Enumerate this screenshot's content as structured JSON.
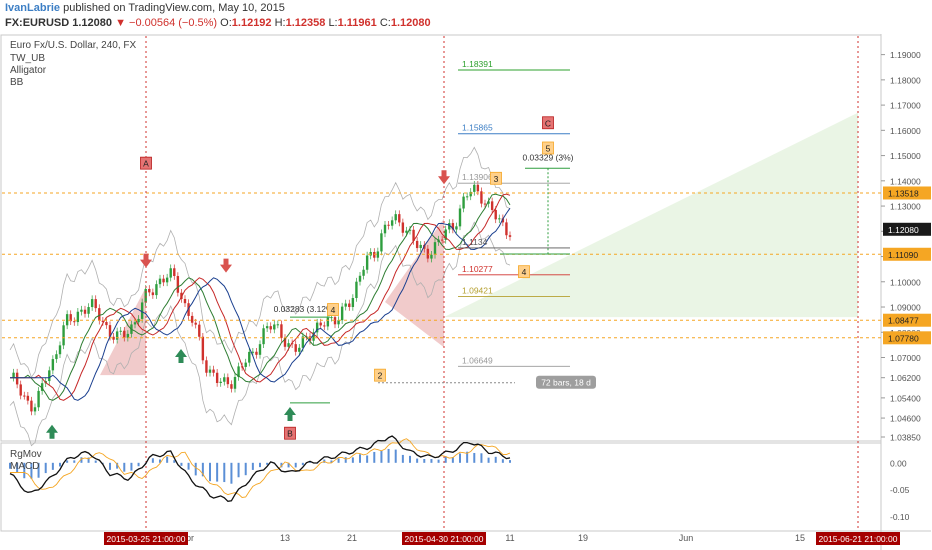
{
  "header": {
    "author": "IvanLabrie",
    "published": "published on TradingView.com, May 10, 2015",
    "symbol": "FX:EURUSD",
    "last": "1.12080",
    "change_arrow": "▼",
    "change": "−0.00564 (−0.5%)",
    "o_label": "O:",
    "o_value": "1.12192",
    "h_label": "H:",
    "h_value": "1.12358",
    "l_label": "L:",
    "l_value": "1.11961",
    "c_label": "C:",
    "c_value": "1.12080"
  },
  "main_pane": {
    "title": "Euro Fx/U.S. Dollar, 240, FX",
    "indicators": [
      "TW_UB",
      "Alligator",
      "BB"
    ]
  },
  "price_axis": {
    "ticks": [
      "1.19000",
      "1.18000",
      "1.17000",
      "1.16000",
      "1.15000",
      "1.14000",
      "1.13000",
      "1.12000",
      "1.11000",
      "1.10000",
      "1.09000",
      "1.08000",
      "1.07000",
      "1.06200",
      "1.05400",
      "1.04600",
      "1.03850"
    ],
    "highlight_labels": [
      {
        "text": "1.13518",
        "kind": "orange"
      },
      {
        "text": "1.12080",
        "kind": "dark"
      },
      {
        "text": "1.11090",
        "kind": "orange"
      },
      {
        "text": "1.08477",
        "kind": "orange"
      },
      {
        "text": "1.07780",
        "kind": "orange"
      }
    ]
  },
  "time_axis": {
    "ticks": [
      "pr",
      "13",
      "21",
      "11",
      "19",
      "Jun",
      "15"
    ],
    "highlight_labels": [
      "2015-03-25 21:00:00",
      "2015-04-30 21:00:00",
      "2015-06-21 21:00:00"
    ]
  },
  "fib_levels": [
    {
      "value": "1.18391",
      "color": "#2ca02c"
    },
    {
      "value": "1.15865",
      "color": "#3d7fc5"
    },
    {
      "value": "1.13906",
      "color": "#999999"
    },
    {
      "value": "1.1134",
      "color": "#555555"
    },
    {
      "value": "1.10277",
      "color": "#d0312d"
    },
    {
      "value": "1.09421",
      "color": "#b5a030"
    },
    {
      "value": "1.06649",
      "color": "#999999"
    }
  ],
  "annotations": {
    "measure_top": "0.03329 (3%)",
    "measure_left": "0.03283 (3.12%)",
    "bars_label": "72 bars, 18 d",
    "wave_labels": [
      "A",
      "B",
      "C",
      "2",
      "3",
      "4",
      "5",
      "4"
    ]
  },
  "lower_pane": {
    "indicators": [
      "RgMov",
      "MACD"
    ],
    "ticks": [
      "0.00",
      "-0.05",
      "-0.10"
    ]
  },
  "chart_data": {
    "type": "line",
    "title": "Euro Fx/U.S. Dollar, 240, FX",
    "ylim": [
      1.0385,
      1.195
    ],
    "x": [
      "2015-03-18",
      "2015-03-20",
      "2015-03-23",
      "2015-03-25",
      "2015-03-27",
      "2015-03-30",
      "2015-04-01",
      "2015-04-03",
      "2015-04-06",
      "2015-04-08",
      "2015-04-10",
      "2015-04-13",
      "2015-04-15",
      "2015-04-17",
      "2015-04-20",
      "2015-04-22",
      "2015-04-24",
      "2015-04-27",
      "2015-04-29",
      "2015-04-30",
      "2015-05-01",
      "2015-05-04",
      "2015-05-05",
      "2015-05-06",
      "2015-05-07",
      "2015-05-08"
    ],
    "series": [
      {
        "values": [
          1.062,
          1.05,
          1.066,
          1.085,
          1.092,
          1.078,
          1.082,
          1.095,
          1.105,
          1.085,
          1.065,
          1.058,
          1.072,
          1.082,
          1.075,
          1.078,
          1.085,
          1.092,
          1.11,
          1.125,
          1.118,
          1.112,
          1.12,
          1.138,
          1.128,
          1.1208
        ]
      }
    ],
    "macd": [
      -0.02,
      -0.06,
      -0.03,
      0.01,
      0.02,
      -0.02,
      -0.03,
      0.01,
      0.02,
      -0.03,
      -0.06,
      -0.07,
      -0.03,
      0.0,
      -0.02,
      0.0,
      0.01,
      0.02,
      0.03,
      0.05,
      0.02,
      0.01,
      0.02,
      0.04,
      0.02,
      0.01
    ]
  }
}
